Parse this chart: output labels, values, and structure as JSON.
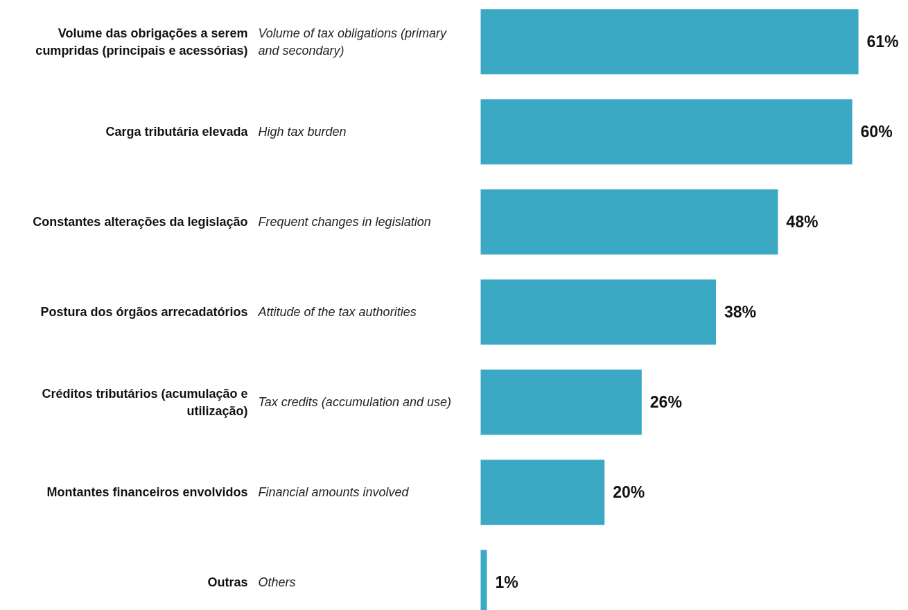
{
  "chart_data": {
    "type": "bar",
    "orientation": "horizontal",
    "tick_labels": false,
    "categories": [
      "Volume das obrigações a serem cumpridas (principais e acessórias)",
      "Carga tributária elevada",
      "Constantes alterações da legislação",
      "Postura dos órgãos arrecadatórios",
      "Créditos tributários (acumulação e utilização)",
      "Montantes financeiros envolvidos",
      "Outras"
    ],
    "annotations": [
      "Volume of tax obligations (primary and secondary)",
      "High tax burden",
      "Frequent changes in legislation",
      "Attitude of the tax authorities",
      "Tax credits (accumulation and use)",
      "Financial amounts involved",
      "Others"
    ],
    "series": [
      {
        "color": "#3ba8c4",
        "values": [
          61,
          60,
          48,
          38,
          26,
          20,
          1
        ],
        "value_labels": [
          "61%",
          "60%",
          "48%",
          "38%",
          "26%",
          "20%",
          "1%"
        ]
      }
    ]
  }
}
